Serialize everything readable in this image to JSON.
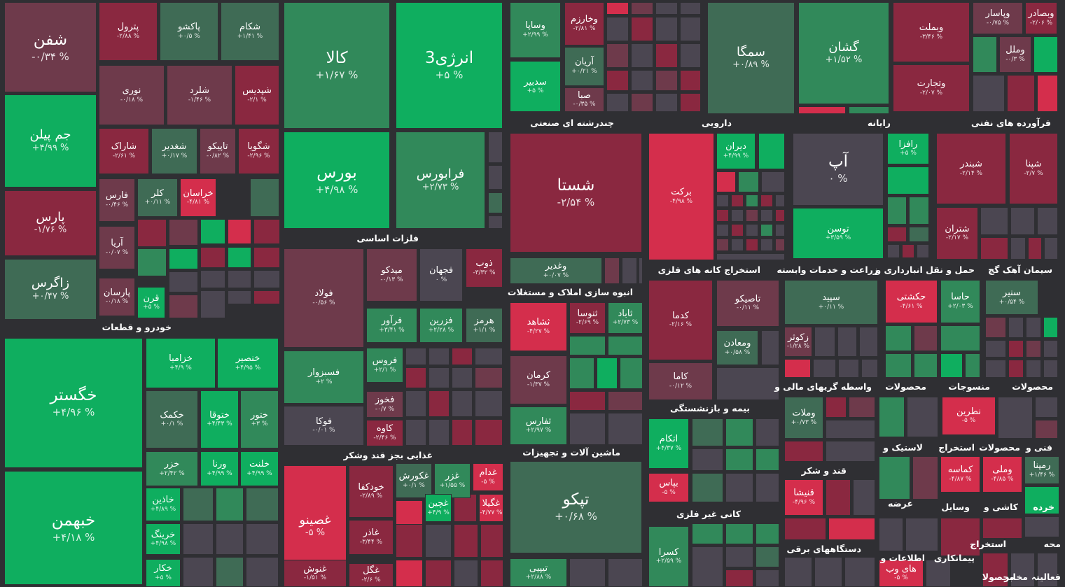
{
  "colors": {
    "up_strong": "#0fae5f",
    "up": "#31895a",
    "up_mid": "#3f6b55",
    "neutral": "#4b4651",
    "down_mid": "#6e3a4b",
    "down": "#8a2840",
    "down_strong": "#d42e4c",
    "background": "#2f2f33"
  },
  "chart_data": {
    "type": "treemap",
    "sectors": [
      {
        "name": "خودرو و قطعات"
      },
      {
        "name": "فلزات اساسی"
      },
      {
        "name": "چندرشته ای صنعتی"
      },
      {
        "name": "دارویی"
      },
      {
        "name": "رایانه"
      },
      {
        "name": "فرآورده های نفتی"
      },
      {
        "name": "انبوه سازی املاک و مستغلات"
      },
      {
        "name": "استخراج کانه های فلزی"
      },
      {
        "name": "زراعت و خدمات وابسته"
      },
      {
        "name": "حمل و نقل انبارداری و"
      },
      {
        "name": "سیمان آهک گچ"
      },
      {
        "name": "واسطه گریهای مالی و"
      },
      {
        "name": "محصولات"
      },
      {
        "name": "منسوجات"
      },
      {
        "name": "محصولات"
      },
      {
        "name": "بیمه و بازنشستگی"
      },
      {
        "name": "غذایی بجز قند وشکر"
      },
      {
        "name": "ماشین آلات و تجهیزات"
      },
      {
        "name": "لاستیک و"
      },
      {
        "name": "استخراج"
      },
      {
        "name": "محصولات"
      },
      {
        "name": "فنی و"
      },
      {
        "name": "قند و شکر"
      },
      {
        "name": "کانی غیر فلزی"
      },
      {
        "name": "عرضه"
      },
      {
        "name": "وسایل"
      },
      {
        "name": "کاشی و"
      },
      {
        "name": "خرده"
      },
      {
        "name": "دستگاههای برقی"
      },
      {
        "name": "محه"
      },
      {
        "name": "استخراج"
      },
      {
        "name": "استخراج"
      },
      {
        "name": "اطلاعات و"
      },
      {
        "name": "پیمانکاری"
      },
      {
        "name": "فعالیتہ"
      },
      {
        "name": "مخابر"
      },
      {
        "name": "محصولا"
      }
    ],
    "tiles": [
      {
        "name": "شفن",
        "change": "-۰/۳۴ %"
      },
      {
        "name": "پترول",
        "change": "-۲/۸۸ %"
      },
      {
        "name": "پاکشو",
        "change": "+۰/۵ %"
      },
      {
        "name": "شکام",
        "change": "+۱/۴۱ %"
      },
      {
        "name": "جم پیلن",
        "change": "+۴/۹۹ %"
      },
      {
        "name": "نوری",
        "change": "-۰/۱۸ %"
      },
      {
        "name": "شلرد",
        "change": "-۱/۴۶ %"
      },
      {
        "name": "شپدیس",
        "change": "-۲/۱ %"
      },
      {
        "name": "شاراک",
        "change": "-۲/۶۱ %"
      },
      {
        "name": "شغدیر",
        "change": "+۰/۱۷ %"
      },
      {
        "name": "تاپیکو",
        "change": "-۰/۸۲ %"
      },
      {
        "name": "شگویا",
        "change": "-۲/۹۶ %"
      },
      {
        "name": "پارس",
        "change": "-۱/۷۶ %"
      },
      {
        "name": "فارس",
        "change": "-۰/۴۶ %"
      },
      {
        "name": "کلر",
        "change": "+۰/۱۱ %"
      },
      {
        "name": "خراسان",
        "change": "-۴/۸۱ %"
      },
      {
        "name": "آریا",
        "change": "-۰/۰۷ %"
      },
      {
        "name": "زاگرس",
        "change": "+۰/۴۷ %"
      },
      {
        "name": "پارسان",
        "change": "-۰/۱۸ %"
      },
      {
        "name": "قرن",
        "change": "+۵ %"
      },
      {
        "name": "کالا",
        "change": "+۱/۶۷ %"
      },
      {
        "name": "انرژی3",
        "change": "+۵ %"
      },
      {
        "name": "بورس",
        "change": "+۴/۹۸ %"
      },
      {
        "name": "فرابورس",
        "change": "+۲/۷۳ %"
      },
      {
        "name": "وساپا",
        "change": "+۲/۹۹ %"
      },
      {
        "name": "وخارزم",
        "change": "-۲/۸۱ %"
      },
      {
        "name": "آریان",
        "change": "+۰/۲۱ %"
      },
      {
        "name": "سدبیر",
        "change": "+۵ %"
      },
      {
        "name": "صبا",
        "change": "-۰/۳۵ %"
      },
      {
        "name": "سمگا",
        "change": "+۰/۸۹ %"
      },
      {
        "name": "گشان",
        "change": "+۱/۵۲ %"
      },
      {
        "name": "وبملت",
        "change": "-۳/۴۶ %"
      },
      {
        "name": "وپاسار",
        "change": "-۰/۷۵ %"
      },
      {
        "name": "وبصادر",
        "change": "-۲/۰۶ %"
      },
      {
        "name": "وملل",
        "change": "-۰/۳ %"
      },
      {
        "name": "وتجارت",
        "change": "-۲/۰۷ %"
      },
      {
        "name": "شستا",
        "change": "-۲/۵۴ %"
      },
      {
        "name": "وغدیر",
        "change": "+۰/۰۷ %"
      },
      {
        "name": "برکت",
        "change": "-۴/۹۸ %"
      },
      {
        "name": "دیران",
        "change": "+۴/۹۹ %"
      },
      {
        "name": "آپ",
        "change": "۰ %"
      },
      {
        "name": "رافزا",
        "change": "+۵ %"
      },
      {
        "name": "شبندر",
        "change": "-۲/۱۴ %"
      },
      {
        "name": "شپنا",
        "change": "-۲/۷ %"
      },
      {
        "name": "توسن",
        "change": "+۳/۵۹ %"
      },
      {
        "name": "شتران",
        "change": "-۲/۱۷ %"
      },
      {
        "name": "فولاد",
        "change": "-۰/۵۶ %"
      },
      {
        "name": "میدکو",
        "change": "-۰/۱۳ %"
      },
      {
        "name": "فجهان",
        "change": "۰ %"
      },
      {
        "name": "ذوب",
        "change": "-۳/۳۲ %"
      },
      {
        "name": "فرآور",
        "change": "+۳/۴۱ %"
      },
      {
        "name": "فزرین",
        "change": "+۲/۲۸ %"
      },
      {
        "name": "هرمز",
        "change": "+۱/۱ %"
      },
      {
        "name": "فسبزوار",
        "change": "+۲ %"
      },
      {
        "name": "فروس",
        "change": "+۲/۱ %"
      },
      {
        "name": "فخوز",
        "change": "-۰/۷ %"
      },
      {
        "name": "فوکا",
        "change": "-۰/۰۱ %"
      },
      {
        "name": "کاوه",
        "change": "-۲/۴۶ %"
      },
      {
        "name": "ثشاهد",
        "change": "-۴/۲۷ %"
      },
      {
        "name": "ثنوسا",
        "change": "-۲/۶۹ %"
      },
      {
        "name": "ثاباد",
        "change": "+۲/۷۳ %"
      },
      {
        "name": "کرمان",
        "change": "-۱/۳۷ %"
      },
      {
        "name": "ثفارس",
        "change": "+۲/۹۷ %"
      },
      {
        "name": "کدما",
        "change": "-۲/۱۶ %"
      },
      {
        "name": "تاصیکو",
        "change": "-۰/۱۱ %"
      },
      {
        "name": "ومعادن",
        "change": "+۰/۵۸ %"
      },
      {
        "name": "کاما",
        "change": "-۰/۱۲ %"
      },
      {
        "name": "سپید",
        "change": "+۰/۱۱ %"
      },
      {
        "name": "زکوثر",
        "change": "-۱/۲۸ %"
      },
      {
        "name": "حکشتی",
        "change": "-۴/۶۱ %"
      },
      {
        "name": "حاسا",
        "change": "+۲/۰۳ %"
      },
      {
        "name": "سنیر",
        "change": "+۰/۵۴ %"
      },
      {
        "name": "خگستر",
        "change": "+۴/۹۶ %"
      },
      {
        "name": "خزامیا",
        "change": "+۴/۹ %"
      },
      {
        "name": "خنصیر",
        "change": "+۴/۹۵ %"
      },
      {
        "name": "خکمک",
        "change": "+۰/۱ %"
      },
      {
        "name": "ختوقا",
        "change": "+۴/۴۳ %"
      },
      {
        "name": "ختور",
        "change": "+۳ %"
      },
      {
        "name": "خزر",
        "change": "+۲/۴۲ %"
      },
      {
        "name": "ورنا",
        "change": "+۴/۹۹ %"
      },
      {
        "name": "خلنت",
        "change": "+۴/۹۹ %"
      },
      {
        "name": "خبهمن",
        "change": "+۴/۱۸ %"
      },
      {
        "name": "خاذین",
        "change": "+۴/۸۹ %"
      },
      {
        "name": "خرینگ",
        "change": "+۴/۹۸ %"
      },
      {
        "name": "خکار",
        "change": "+۵ %"
      },
      {
        "name": "غصینو",
        "change": "-۵ %"
      },
      {
        "name": "غکورش",
        "change": "+۰/۱ %"
      },
      {
        "name": "غزر",
        "change": "+۱/۵۵ %"
      },
      {
        "name": "غدام",
        "change": "-۵ %"
      },
      {
        "name": "خودکفا",
        "change": "-۲/۸۹ %"
      },
      {
        "name": "غچین",
        "change": "+۴/۹ %"
      },
      {
        "name": "غگیلا",
        "change": "-۴/۷۷ %"
      },
      {
        "name": "غاذر",
        "change": "-۳/۴۴ %"
      },
      {
        "name": "غنوش",
        "change": "-۱/۵۱ %"
      },
      {
        "name": "غگل",
        "change": "-۲/۶ %"
      },
      {
        "name": "تپکو",
        "change": "+۰/۶۸ %"
      },
      {
        "name": "تیپیی",
        "change": "+۲/۸۸ %"
      },
      {
        "name": "اتکام",
        "change": "+۴/۳۷ %"
      },
      {
        "name": "بپاس",
        "change": "-۵ %"
      },
      {
        "name": "کسرا",
        "change": "+۲/۵۹ %"
      },
      {
        "name": "وملات",
        "change": "+۰/۷۳ %"
      },
      {
        "name": "نطرین",
        "change": "-۵ %"
      },
      {
        "name": "قنیشا",
        "change": "-۴/۹۶ %"
      },
      {
        "name": "کماسه",
        "change": "-۴/۸۷ %"
      },
      {
        "name": "وملی",
        "change": "-۴/۸۵ %"
      },
      {
        "name": "رمپنا",
        "change": "+۱/۴۶ %"
      },
      {
        "name": "های وب",
        "change": "-۵ %"
      }
    ]
  }
}
